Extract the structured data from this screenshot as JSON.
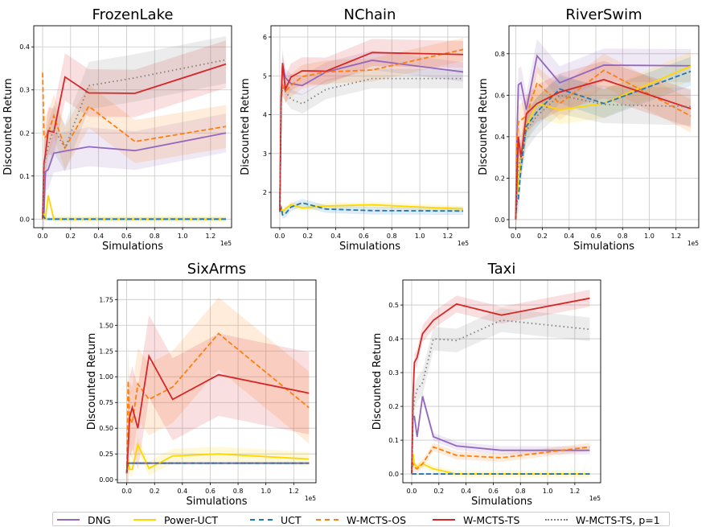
{
  "legend": [
    {
      "name": "DNG",
      "color": "#9467bd",
      "style": "solid"
    },
    {
      "name": "Power-UCT",
      "color": "#ffd700",
      "style": "solid"
    },
    {
      "name": "UCT",
      "color": "#1f77b4",
      "style": "dashed"
    },
    {
      "name": "W-MCTS-OS",
      "color": "#ff7f0e",
      "style": "dashed"
    },
    {
      "name": "W-MCTS-TS",
      "color": "#d62728",
      "style": "solid"
    },
    {
      "name": "W-MCTS-TS, p=1",
      "color": "#7f7f7f",
      "style": "dotted"
    }
  ],
  "chart_data": [
    {
      "type": "line",
      "title": "FrozenLake",
      "xlabel": "Simulations",
      "ylabel": "Discounted Return",
      "x_offset_text": "1e5",
      "x": [
        0.0,
        0.01,
        0.02,
        0.04,
        0.08,
        0.16,
        0.33,
        0.66,
        1.31
      ],
      "xlim": [
        -0.063,
        1.35
      ],
      "ylim": [
        -0.02,
        0.449
      ],
      "xticks": [
        "0.0",
        "0.2",
        "0.4",
        "0.6",
        "0.8",
        "1.0",
        "1.2"
      ],
      "yticks": [
        "0.0",
        "0.1",
        "0.2",
        "0.3",
        "0.4"
      ],
      "grid": true,
      "series": [
        {
          "name": "DNG",
          "y": [
            0.0,
            0.01,
            0.11,
            0.115,
            0.153,
            0.158,
            0.168,
            0.159,
            0.2
          ],
          "err": 0.045
        },
        {
          "name": "Power-UCT",
          "y": [
            0.0,
            0.01,
            0.0,
            0.055,
            0.0,
            0.0,
            0.0,
            0.0,
            0.0
          ],
          "err": 0.008
        },
        {
          "name": "UCT",
          "y": [
            0.01,
            0.005,
            0.0,
            0.0,
            0.0,
            0.0,
            0.0,
            0.0,
            0.0
          ],
          "err": 0.004
        },
        {
          "name": "W-MCTS-OS",
          "y": [
            0.34,
            0.19,
            0.19,
            0.2,
            0.24,
            0.165,
            0.262,
            0.18,
            0.215
          ],
          "err": 0.05
        },
        {
          "name": "W-MCTS-TS",
          "y": [
            0.0,
            0.13,
            0.15,
            0.205,
            0.202,
            0.33,
            0.293,
            0.292,
            0.36
          ],
          "err": 0.055
        },
        {
          "name": "W-MCTS-TS, p=1",
          "y": [
            0.0,
            0.12,
            0.14,
            0.17,
            0.21,
            0.165,
            0.31,
            0.328,
            0.37
          ],
          "err": 0.055
        }
      ]
    },
    {
      "type": "line",
      "title": "NChain",
      "xlabel": "Simulations",
      "ylabel": "Discounted Return",
      "x_offset_text": "1e5",
      "x": [
        0.0,
        0.01,
        0.02,
        0.04,
        0.08,
        0.16,
        0.33,
        0.66,
        1.31
      ],
      "xlim": [
        -0.063,
        1.35
      ],
      "ylim": [
        1.09,
        6.29
      ],
      "xticks": [
        "0.0",
        "0.2",
        "0.4",
        "0.6",
        "0.8",
        "1.0",
        "1.2"
      ],
      "yticks": [
        "2",
        "3",
        "4",
        "5",
        "6"
      ],
      "grid": true,
      "series": [
        {
          "name": "DNG",
          "y": [
            1.5,
            4.4,
            5.3,
            4.95,
            4.8,
            4.75,
            5.1,
            5.4,
            5.1
          ],
          "err": 0.25
        },
        {
          "name": "Power-UCT",
          "y": [
            1.5,
            1.6,
            1.5,
            1.58,
            1.68,
            1.6,
            1.65,
            1.68,
            1.57
          ],
          "err": 0.08
        },
        {
          "name": "UCT",
          "y": [
            1.5,
            1.6,
            1.42,
            1.45,
            1.62,
            1.73,
            1.57,
            1.53,
            1.52
          ],
          "err": 0.1
        },
        {
          "name": "W-MCTS-OS",
          "y": [
            1.5,
            4.4,
            4.8,
            4.6,
            4.75,
            4.98,
            5.1,
            5.15,
            5.68
          ],
          "err": 0.3
        },
        {
          "name": "W-MCTS-TS",
          "y": [
            1.5,
            4.5,
            5.33,
            4.65,
            4.97,
            5.13,
            5.12,
            5.6,
            5.55
          ],
          "err": 0.35
        },
        {
          "name": "W-MCTS-TS, p=1",
          "y": [
            1.5,
            4.3,
            4.7,
            4.6,
            4.4,
            4.28,
            4.65,
            4.93,
            4.93
          ],
          "err": 0.25
        }
      ]
    },
    {
      "type": "line",
      "title": "RiverSwim",
      "xlabel": "Simulations",
      "ylabel": "Discounted Return",
      "x_offset_text": "1e5",
      "x": [
        0.0,
        0.01,
        0.02,
        0.04,
        0.08,
        0.16,
        0.33,
        0.66,
        1.31
      ],
      "xlim": [
        -0.05,
        1.37
      ],
      "ylim": [
        -0.039,
        0.935
      ],
      "xticks": [
        "0.0",
        "0.2",
        "0.4",
        "0.6",
        "0.8",
        "1.0",
        "1.2"
      ],
      "yticks": [
        "0.0",
        "0.2",
        "0.4",
        "0.6",
        "0.8"
      ],
      "grid": true,
      "series": [
        {
          "name": "DNG",
          "y": [
            0.0,
            0.4,
            0.65,
            0.66,
            0.53,
            0.79,
            0.66,
            0.745,
            0.742
          ],
          "err": 0.08
        },
        {
          "name": "Power-UCT",
          "y": [
            0.0,
            0.1,
            0.2,
            0.3,
            0.45,
            0.56,
            0.53,
            0.56,
            0.74
          ],
          "err": 0.07
        },
        {
          "name": "UCT",
          "y": [
            0.0,
            0.1,
            0.1,
            0.25,
            0.45,
            0.52,
            0.63,
            0.56,
            0.715
          ],
          "err": 0.07
        },
        {
          "name": "W-MCTS-OS",
          "y": [
            0.0,
            0.4,
            0.47,
            0.48,
            0.5,
            0.66,
            0.56,
            0.72,
            0.5
          ],
          "err": 0.08
        },
        {
          "name": "W-MCTS-TS",
          "y": [
            0.0,
            0.2,
            0.4,
            0.3,
            0.51,
            0.56,
            0.615,
            0.675,
            0.535
          ],
          "err": 0.09
        },
        {
          "name": "W-MCTS-TS, p=1",
          "y": [
            0.0,
            0.15,
            0.25,
            0.3,
            0.43,
            0.5,
            0.6,
            0.555,
            0.545
          ],
          "err": 0.09
        }
      ]
    },
    {
      "type": "line",
      "title": "SixArms",
      "xlabel": "Simulations",
      "ylabel": "Discounted Return",
      "x_offset_text": "1e5",
      "x": [
        0.0,
        0.01,
        0.02,
        0.04,
        0.08,
        0.16,
        0.33,
        0.66,
        1.31
      ],
      "xlim": [
        -0.067,
        1.36
      ],
      "ylim": [
        -0.03,
        1.94
      ],
      "xticks": [
        "0.0",
        "0.2",
        "0.4",
        "0.6",
        "0.8",
        "1.0",
        "1.2"
      ],
      "yticks": [
        "0.00",
        "0.25",
        "0.50",
        "0.75",
        "1.00",
        "1.25",
        "1.50",
        "1.75"
      ],
      "grid": true,
      "series": [
        {
          "name": "DNG",
          "y": [
            0.08,
            0.16,
            0.16,
            0.16,
            0.16,
            0.16,
            0.16,
            0.16,
            0.16
          ],
          "err": 0.01
        },
        {
          "name": "Power-UCT",
          "y": [
            0.06,
            0.2,
            0.1,
            0.1,
            0.34,
            0.11,
            0.23,
            0.25,
            0.2
          ],
          "err": 0.07
        },
        {
          "name": "UCT",
          "y": [
            0.06,
            0.16,
            0.16,
            0.16,
            0.16,
            0.16,
            0.16,
            0.16,
            0.16
          ],
          "err": 0.01
        },
        {
          "name": "W-MCTS-OS",
          "y": [
            0.06,
            0.96,
            0.6,
            0.55,
            0.93,
            0.78,
            0.9,
            1.42,
            0.7
          ],
          "err": 0.35
        },
        {
          "name": "W-MCTS-TS",
          "y": [
            0.06,
            0.3,
            0.6,
            0.7,
            0.5,
            1.2,
            0.78,
            1.02,
            0.84
          ],
          "err": 0.4
        },
        {
          "name": "W-MCTS-TS, p=1",
          "y": [
            0.06,
            0.16,
            0.16,
            0.16,
            0.16,
            0.16,
            0.16,
            0.16,
            0.16
          ],
          "err": 0.01
        }
      ]
    },
    {
      "type": "line",
      "title": "Taxi",
      "xlabel": "Simulations",
      "ylabel": "Discounted Return",
      "x_offset_text": "1e5",
      "x": [
        0.0,
        0.01,
        0.02,
        0.04,
        0.08,
        0.16,
        0.33,
        0.66,
        1.31
      ],
      "xlim": [
        -0.065,
        1.39
      ],
      "ylim": [
        -0.026,
        0.574
      ],
      "xticks": [
        "0.0",
        "0.2",
        "0.4",
        "0.6",
        "0.8",
        "1.0",
        "1.2"
      ],
      "yticks": [
        "0.0",
        "0.1",
        "0.2",
        "0.3",
        "0.4",
        "0.5"
      ],
      "grid": true,
      "series": [
        {
          "name": "DNG",
          "y": [
            0.0,
            0.17,
            0.17,
            0.11,
            0.23,
            0.11,
            0.083,
            0.07,
            0.07
          ],
          "err": 0.012
        },
        {
          "name": "Power-UCT",
          "y": [
            0.0,
            0.06,
            0.03,
            0.02,
            0.03,
            0.015,
            0.0,
            0.0,
            0.0
          ],
          "err": 0.01
        },
        {
          "name": "UCT",
          "y": [
            0.0,
            0.0,
            0.0,
            0.0,
            0.0,
            0.0,
            0.0,
            0.0,
            0.0
          ],
          "err": 0.002
        },
        {
          "name": "W-MCTS-OS",
          "y": [
            0.0,
            0.03,
            0.02,
            0.015,
            0.03,
            0.08,
            0.055,
            0.048,
            0.08
          ],
          "err": 0.012
        },
        {
          "name": "W-MCTS-TS",
          "y": [
            0.0,
            0.23,
            0.33,
            0.345,
            0.415,
            0.455,
            0.503,
            0.47,
            0.52
          ],
          "err": 0.025
        },
        {
          "name": "W-MCTS-TS, p=1",
          "y": [
            0.0,
            0.18,
            0.22,
            0.25,
            0.27,
            0.4,
            0.395,
            0.455,
            0.428
          ],
          "err": 0.035
        }
      ]
    }
  ]
}
